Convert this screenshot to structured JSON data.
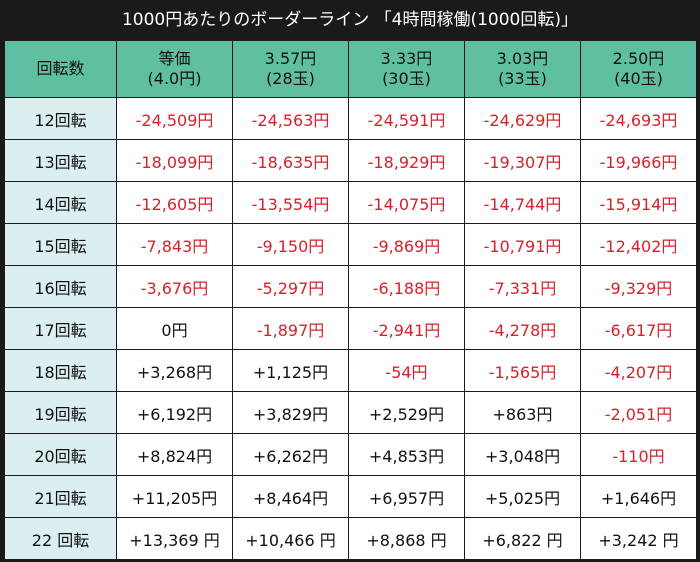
{
  "title": "1000円あたりのボーダーライン 「4時間稼働(1000回転)」",
  "colors": {
    "header_bg": "#5fbfa3",
    "row_label_bg": "#dbeff0",
    "negative": "#d8202a",
    "positive": "#111111",
    "frame": "#1a1a1a"
  },
  "table": {
    "corner_label": "回転数",
    "columns": [
      {
        "line1": "等価",
        "line2": "(4.0円)"
      },
      {
        "line1": "3.57円",
        "line2": "(28玉)"
      },
      {
        "line1": "3.33円",
        "line2": "(30玉)"
      },
      {
        "line1": "3.03円",
        "line2": "(33玉)"
      },
      {
        "line1": "2.50円",
        "line2": "(40玉)"
      }
    ],
    "rows": [
      {
        "label": "12回転",
        "cells": [
          {
            "text": "-24,509円",
            "sign": "neg"
          },
          {
            "text": "-24,563円",
            "sign": "neg"
          },
          {
            "text": "-24,591円",
            "sign": "neg"
          },
          {
            "text": "-24,629円",
            "sign": "neg"
          },
          {
            "text": "-24,693円",
            "sign": "neg"
          }
        ]
      },
      {
        "label": "13回転",
        "cells": [
          {
            "text": "-18,099円",
            "sign": "neg"
          },
          {
            "text": "-18,635円",
            "sign": "neg"
          },
          {
            "text": "-18,929円",
            "sign": "neg"
          },
          {
            "text": "-19,307円",
            "sign": "neg"
          },
          {
            "text": "-19,966円",
            "sign": "neg"
          }
        ]
      },
      {
        "label": "14回転",
        "cells": [
          {
            "text": "-12,605円",
            "sign": "neg"
          },
          {
            "text": "-13,554円",
            "sign": "neg"
          },
          {
            "text": "-14,075円",
            "sign": "neg"
          },
          {
            "text": "-14,744円",
            "sign": "neg"
          },
          {
            "text": "-15,914円",
            "sign": "neg"
          }
        ]
      },
      {
        "label": "15回転",
        "cells": [
          {
            "text": "-7,843円",
            "sign": "neg"
          },
          {
            "text": "-9,150円",
            "sign": "neg"
          },
          {
            "text": "-9,869円",
            "sign": "neg"
          },
          {
            "text": "-10,791円",
            "sign": "neg"
          },
          {
            "text": "-12,402円",
            "sign": "neg"
          }
        ]
      },
      {
        "label": "16回転",
        "cells": [
          {
            "text": "-3,676円",
            "sign": "neg"
          },
          {
            "text": "-5,297円",
            "sign": "neg"
          },
          {
            "text": "-6,188円",
            "sign": "neg"
          },
          {
            "text": "-7,331円",
            "sign": "neg"
          },
          {
            "text": "-9,329円",
            "sign": "neg"
          }
        ]
      },
      {
        "label": "17回転",
        "cells": [
          {
            "text": "0円",
            "sign": "pos"
          },
          {
            "text": "-1,897円",
            "sign": "neg"
          },
          {
            "text": "-2,941円",
            "sign": "neg"
          },
          {
            "text": "-4,278円",
            "sign": "neg"
          },
          {
            "text": "-6,617円",
            "sign": "neg"
          }
        ]
      },
      {
        "label": "18回転",
        "cells": [
          {
            "text": "+3,268円",
            "sign": "pos"
          },
          {
            "text": "+1,125円",
            "sign": "pos"
          },
          {
            "text": "-54円",
            "sign": "neg"
          },
          {
            "text": "-1,565円",
            "sign": "neg"
          },
          {
            "text": "-4,207円",
            "sign": "neg"
          }
        ]
      },
      {
        "label": "19回転",
        "cells": [
          {
            "text": "+6,192円",
            "sign": "pos"
          },
          {
            "text": "+3,829円",
            "sign": "pos"
          },
          {
            "text": "+2,529円",
            "sign": "pos"
          },
          {
            "text": "+863円",
            "sign": "pos"
          },
          {
            "text": "-2,051円",
            "sign": "neg"
          }
        ]
      },
      {
        "label": "20回転",
        "cells": [
          {
            "text": "+8,824円",
            "sign": "pos"
          },
          {
            "text": "+6,262円",
            "sign": "pos"
          },
          {
            "text": "+4,853円",
            "sign": "pos"
          },
          {
            "text": "+3,048円",
            "sign": "pos"
          },
          {
            "text": "-110円",
            "sign": "neg"
          }
        ]
      },
      {
        "label": "21回転",
        "cells": [
          {
            "text": "+11,205円",
            "sign": "pos"
          },
          {
            "text": "+8,464円",
            "sign": "pos"
          },
          {
            "text": "+6,957円",
            "sign": "pos"
          },
          {
            "text": "+5,025円",
            "sign": "pos"
          },
          {
            "text": "+1,646円",
            "sign": "pos"
          }
        ]
      },
      {
        "label": "22 回転",
        "cells": [
          {
            "text": "+13,369 円",
            "sign": "pos"
          },
          {
            "text": "+10,466 円",
            "sign": "pos"
          },
          {
            "text": "+8,868 円",
            "sign": "pos"
          },
          {
            "text": "+6,822 円",
            "sign": "pos"
          },
          {
            "text": "+3,242 円",
            "sign": "pos"
          }
        ]
      }
    ]
  }
}
